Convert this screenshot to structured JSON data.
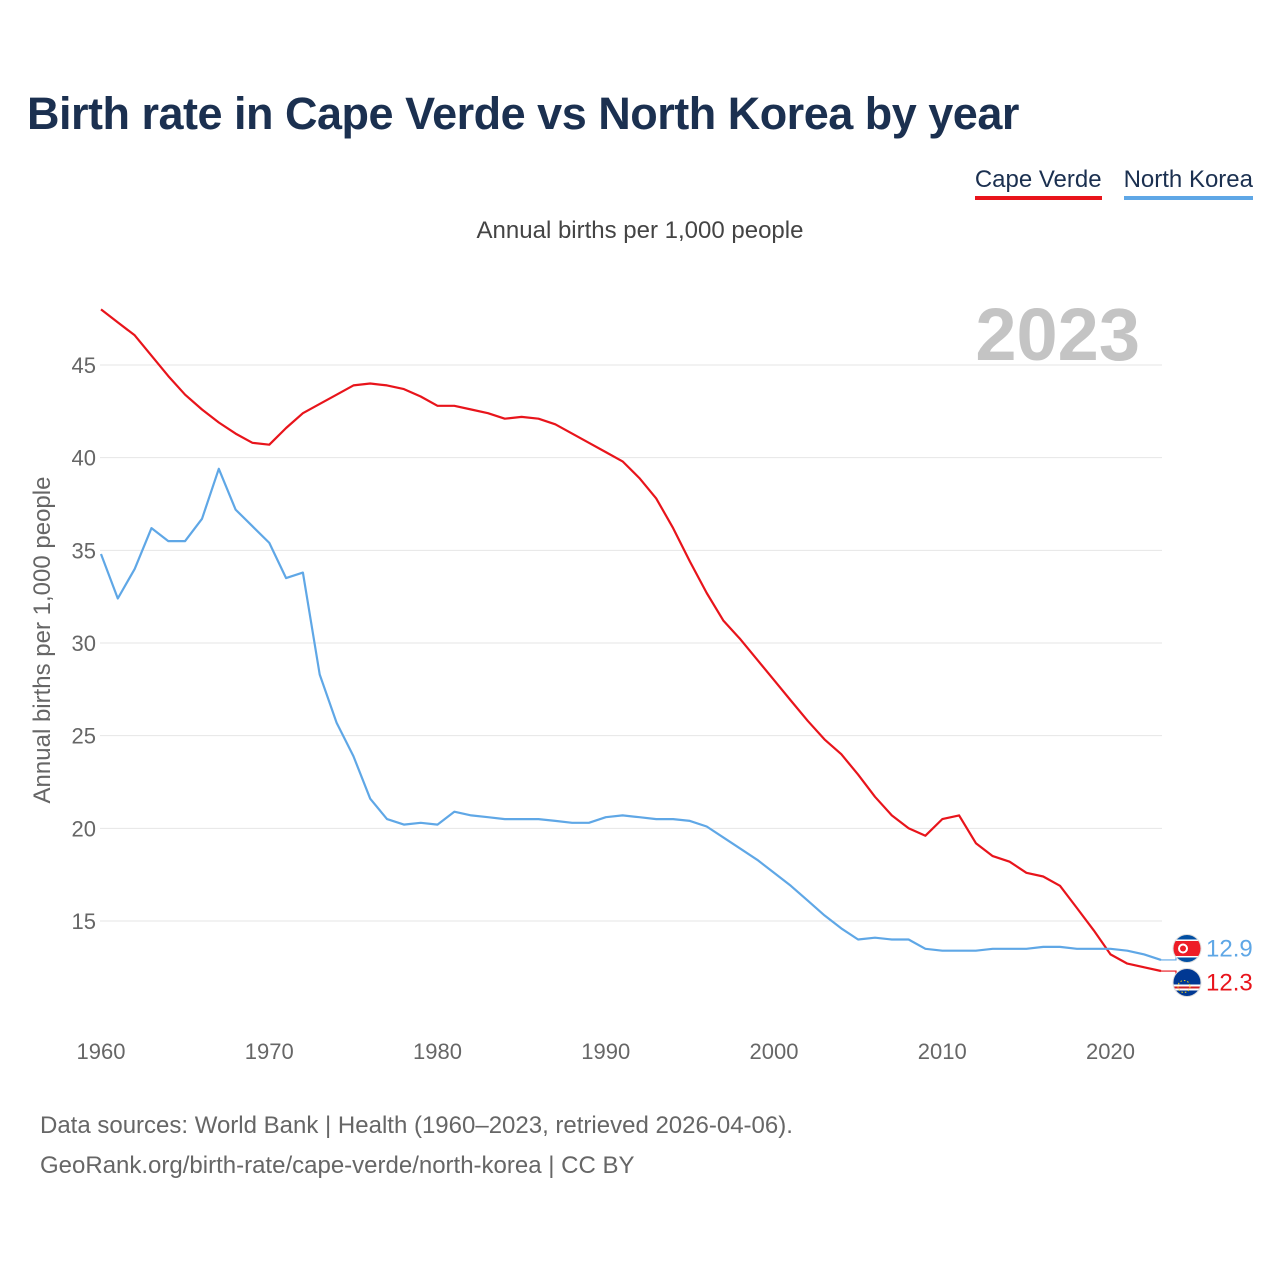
{
  "title": "Birth rate in Cape Verde vs North Korea by year",
  "subtitle": "Annual births per 1,000 people",
  "footer": {
    "line1": "Data sources: World Bank | Health (1960–2023, retrieved 2026-04-06).",
    "line2": "GeoRank.org/birth-rate/cape-verde/north-korea | CC BY"
  },
  "colors": {
    "cape_verde": "#e8141b",
    "north_korea": "#5fa7e6",
    "title": "#1b3050"
  },
  "chart_data": {
    "type": "line",
    "title": "Birth rate in Cape Verde vs North Korea by year",
    "subtitle": "Annual births per 1,000 people",
    "xlabel": "",
    "ylabel": "Annual births per 1,000 people",
    "year_label": "2023",
    "xlim": [
      1960,
      2023
    ],
    "ylim": [
      10.5,
      48
    ],
    "xticks": [
      1960,
      1970,
      1980,
      1990,
      2000,
      2010,
      2020
    ],
    "yticks": [
      15,
      20,
      25,
      30,
      35,
      40,
      45
    ],
    "legend_position": "top-right",
    "x": [
      1960,
      1961,
      1962,
      1963,
      1964,
      1965,
      1966,
      1967,
      1968,
      1969,
      1970,
      1971,
      1972,
      1973,
      1974,
      1975,
      1976,
      1977,
      1978,
      1979,
      1980,
      1981,
      1982,
      1983,
      1984,
      1985,
      1986,
      1987,
      1988,
      1989,
      1990,
      1991,
      1992,
      1993,
      1994,
      1995,
      1996,
      1997,
      1998,
      1999,
      2000,
      2001,
      2002,
      2003,
      2004,
      2005,
      2006,
      2007,
      2008,
      2009,
      2010,
      2011,
      2012,
      2013,
      2014,
      2015,
      2016,
      2017,
      2018,
      2019,
      2020,
      2021,
      2022,
      2023
    ],
    "series": [
      {
        "name": "Cape Verde",
        "color": "#e8141b",
        "end_label": "12.3",
        "values": [
          48.0,
          47.3,
          46.6,
          45.5,
          44.4,
          43.4,
          42.6,
          41.9,
          41.3,
          40.8,
          40.7,
          41.6,
          42.4,
          42.9,
          43.4,
          43.9,
          44.0,
          43.9,
          43.7,
          43.3,
          42.8,
          42.8,
          42.6,
          42.4,
          42.1,
          42.2,
          42.1,
          41.8,
          41.3,
          40.8,
          40.3,
          39.8,
          38.9,
          37.8,
          36.2,
          34.4,
          32.7,
          31.2,
          30.2,
          29.1,
          28.0,
          26.9,
          25.8,
          24.8,
          24.0,
          22.9,
          21.7,
          20.7,
          20.0,
          19.6,
          20.5,
          20.7,
          19.2,
          18.5,
          18.2,
          17.6,
          17.4,
          16.9,
          15.7,
          14.5,
          13.2,
          12.7,
          12.5,
          12.3
        ]
      },
      {
        "name": "North Korea",
        "color": "#5fa7e6",
        "end_label": "12.9",
        "values": [
          34.8,
          32.4,
          34.0,
          36.2,
          35.5,
          35.5,
          36.7,
          39.4,
          37.2,
          36.3,
          35.4,
          33.5,
          33.8,
          28.3,
          25.7,
          23.9,
          21.6,
          20.5,
          20.2,
          20.3,
          20.2,
          20.9,
          20.7,
          20.6,
          20.5,
          20.5,
          20.5,
          20.4,
          20.3,
          20.3,
          20.6,
          20.7,
          20.6,
          20.5,
          20.5,
          20.4,
          20.1,
          19.5,
          18.9,
          18.3,
          17.6,
          16.9,
          16.1,
          15.3,
          14.6,
          14.0,
          14.1,
          14.0,
          14.0,
          13.5,
          13.4,
          13.4,
          13.4,
          13.5,
          13.5,
          13.5,
          13.6,
          13.6,
          13.5,
          13.5,
          13.5,
          13.4,
          13.2,
          12.9
        ]
      }
    ]
  }
}
